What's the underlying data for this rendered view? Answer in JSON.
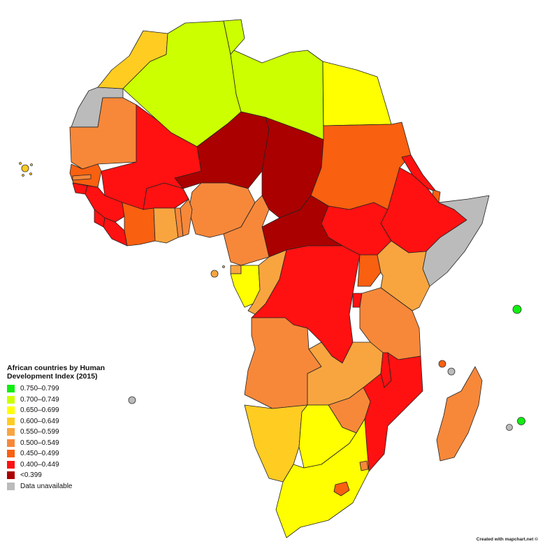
{
  "legend": {
    "title": "African countries by Human\nDevelopment Index (2015)",
    "items": [
      {
        "label": "0.750–0.799",
        "color": "#11ee11"
      },
      {
        "label": "0.700–0.749",
        "color": "#ccff00"
      },
      {
        "label": "0.650–0.699",
        "color": "#ffff00"
      },
      {
        "label": "0.600–0.649",
        "color": "#ffcc22"
      },
      {
        "label": "0.550–0.599",
        "color": "#f8a540"
      },
      {
        "label": "0.500–0.549",
        "color": "#f7883a"
      },
      {
        "label": "0.450–0.499",
        "color": "#f96010"
      },
      {
        "label": "0.400–0.449",
        "color": "#ff1111"
      },
      {
        "label": "<0.399",
        "color": "#aa0000"
      },
      {
        "label": "Data unavailable",
        "color": "#bbbbbb"
      }
    ]
  },
  "credit": "Created with mapchart.net ©"
}
